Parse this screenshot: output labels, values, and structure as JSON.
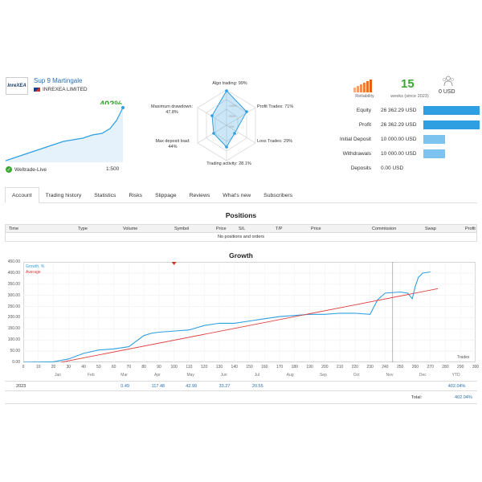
{
  "account": {
    "logo_text": "InreXEA",
    "title": "Sup 9 Martingale",
    "broker": "INREXEA LIMITED",
    "growth_pct": "402%",
    "server": "Weltrade-Live",
    "leverage": "1:500"
  },
  "radar": {
    "algo": "Algo trading: 99%",
    "profit_trades": "Profit Trades: 71%",
    "loss_trades": "Loss Trades: 29%",
    "activity": "Trading activity: 28.1%",
    "max_deposit_load_l1": "Max deposit load:",
    "max_deposit_load_l2": "44%",
    "max_drawdown_l1": "Maximum drawdown:",
    "max_drawdown_l2": "47.8%",
    "scale": [
      "+100%",
      "+50%",
      "+0%"
    ]
  },
  "header_stats": {
    "reliability_label": "Reliability",
    "weeks_value": "15",
    "weeks_label": "weeks (since 2023)",
    "subscribers_value": "0 USD"
  },
  "summary": [
    {
      "label": "Equity",
      "value": "26 362.29 USD",
      "fill": 1.0
    },
    {
      "label": "Profit",
      "value": "26 362.29 USD",
      "fill": 1.0
    },
    {
      "label": "Initial Deposit",
      "value": "10 000.00 USD",
      "fill": 0.38
    },
    {
      "label": "Withdrawals",
      "value": "10 000.00 USD",
      "fill": 0.38
    },
    {
      "label": "Deposits",
      "value": "0.00 USD",
      "fill": 0.0
    }
  ],
  "tabs": [
    "Account",
    "Trading history",
    "Statistics",
    "Risks",
    "Slippage",
    "Reviews",
    "What's new",
    "Subscribers"
  ],
  "positions": {
    "title": "Positions",
    "columns": [
      "Time",
      "Type",
      "Volume",
      "Symbol",
      "Price",
      "S/L",
      "T/P",
      "Price",
      "Commission",
      "Swap",
      "Profit"
    ],
    "empty": "No positions and orders"
  },
  "growth": {
    "title": "Growth",
    "legend_growth": "Growth, %",
    "legend_average": "Average",
    "trades_label": "Trades",
    "y_ticks": [
      "450.00",
      "400.00",
      "350.00",
      "300.00",
      "250.00",
      "200.00",
      "150.00",
      "100.00",
      "50.00",
      "0.00"
    ],
    "x_ticks": [
      "0",
      "10",
      "20",
      "30",
      "40",
      "50",
      "60",
      "70",
      "80",
      "90",
      "100",
      "110",
      "120",
      "130",
      "140",
      "150",
      "160",
      "170",
      "180",
      "190",
      "200",
      "210",
      "220",
      "230",
      "240",
      "250",
      "260",
      "270",
      "280",
      "290",
      "300"
    ],
    "months": [
      "Jan",
      "Feb",
      "Mar",
      "Apr",
      "May",
      "Jun",
      "Jul",
      "Aug",
      "Sep",
      "Oct",
      "Nov",
      "Dec",
      "YTD"
    ],
    "year": "2023",
    "month_values": [
      "",
      "",
      "0.49",
      "117.48",
      "42.99",
      "33.27",
      "20.55",
      "",
      "",
      "",
      "",
      "",
      "402.04%"
    ],
    "total_label": "Total:",
    "total_value": "402.04%"
  },
  "chart_data": {
    "type": "line",
    "title": "Growth",
    "xlabel": "Trades",
    "ylabel": "",
    "xlim": [
      0,
      300
    ],
    "ylim": [
      0,
      450
    ],
    "series": [
      {
        "name": "Growth, %",
        "x": [
          0,
          20,
          30,
          40,
          50,
          60,
          70,
          80,
          85,
          90,
          100,
          110,
          120,
          130,
          140,
          150,
          160,
          170,
          180,
          190,
          200,
          210,
          220,
          230,
          235,
          240,
          250,
          255,
          258,
          260,
          262,
          265,
          270
        ],
        "y": [
          0,
          2,
          15,
          40,
          55,
          60,
          70,
          120,
          130,
          135,
          140,
          145,
          165,
          175,
          175,
          185,
          195,
          205,
          210,
          215,
          215,
          220,
          220,
          215,
          280,
          310,
          315,
          310,
          285,
          340,
          380,
          400,
          405
        ]
      },
      {
        "name": "Average",
        "x": [
          25,
          275
        ],
        "y": [
          0,
          330
        ]
      }
    ]
  }
}
